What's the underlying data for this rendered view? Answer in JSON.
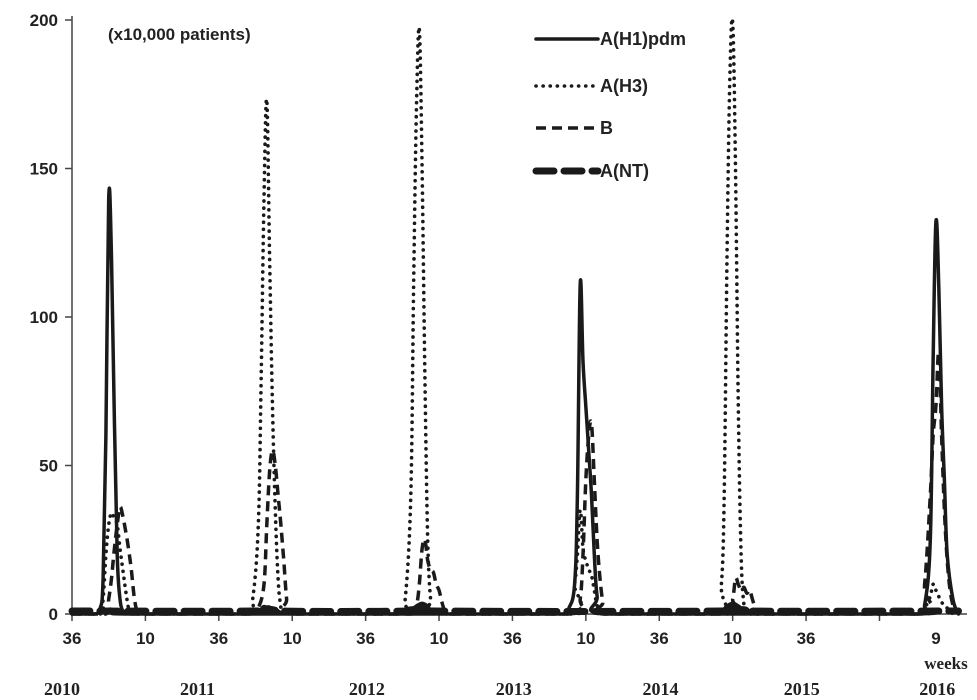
{
  "chart_data": {
    "type": "line",
    "unit_note": "(x10,000 patients)",
    "xlabel": "weeks",
    "ylim": [
      0,
      200
    ],
    "y_ticks": [
      0,
      50,
      100,
      150,
      200
    ],
    "x_week_ticks": [
      "36",
      "10",
      "36",
      "10",
      "36",
      "10",
      "36",
      "10",
      "36",
      "10",
      "36",
      "9"
    ],
    "year_labels": [
      "2010",
      "2011",
      "2012",
      "2013",
      "2014",
      "2015",
      "2016"
    ],
    "legend_position": "top-right",
    "grid": false,
    "series": [
      {
        "name": "A(H1)pdm",
        "style": "solid",
        "points": [
          [
            36,
            0
          ],
          [
            44,
            0
          ],
          [
            46,
            2
          ],
          [
            47,
            12
          ],
          [
            48,
            60
          ],
          [
            49,
            140
          ],
          [
            50,
            120
          ],
          [
            51,
            65
          ],
          [
            52,
            20
          ],
          [
            53,
            5
          ],
          [
            54,
            1
          ],
          [
            55,
            0
          ],
          [
            112,
            0
          ],
          [
            114,
            1
          ],
          [
            116,
            0
          ],
          [
            160,
            0
          ],
          [
            210,
            0
          ],
          [
            212,
            2
          ],
          [
            214,
            10
          ],
          [
            215,
            40
          ],
          [
            216,
            111
          ],
          [
            217,
            85
          ],
          [
            218,
            70
          ],
          [
            219,
            55
          ],
          [
            220,
            40
          ],
          [
            221,
            20
          ],
          [
            222,
            6
          ],
          [
            224,
            0
          ],
          [
            270,
            0
          ],
          [
            336,
            0
          ],
          [
            338,
            3
          ],
          [
            340,
            25
          ],
          [
            341,
            85
          ],
          [
            342,
            132
          ],
          [
            343,
            110
          ],
          [
            344,
            70
          ],
          [
            345,
            45
          ],
          [
            346,
            20
          ],
          [
            348,
            5
          ],
          [
            350,
            0
          ]
        ]
      },
      {
        "name": "A(H3)",
        "style": "dotted",
        "points": [
          [
            36,
            0
          ],
          [
            46,
            0
          ],
          [
            47,
            5
          ],
          [
            48,
            20
          ],
          [
            49,
            30
          ],
          [
            50,
            34
          ],
          [
            51,
            32
          ],
          [
            52,
            30
          ],
          [
            53,
            22
          ],
          [
            54,
            15
          ],
          [
            55,
            8
          ],
          [
            56,
            2
          ],
          [
            57,
            0
          ],
          [
            98,
            0
          ],
          [
            100,
            5
          ],
          [
            102,
            30
          ],
          [
            103,
            80
          ],
          [
            104,
            140
          ],
          [
            105,
            173
          ],
          [
            106,
            120
          ],
          [
            107,
            70
          ],
          [
            108,
            35
          ],
          [
            109,
            12
          ],
          [
            110,
            3
          ],
          [
            112,
            0
          ],
          [
            152,
            0
          ],
          [
            154,
            5
          ],
          [
            156,
            40
          ],
          [
            157,
            110
          ],
          [
            158,
            170
          ],
          [
            159,
            197
          ],
          [
            160,
            150
          ],
          [
            161,
            80
          ],
          [
            162,
            25
          ],
          [
            163,
            5
          ],
          [
            164,
            0
          ],
          [
            212,
            0
          ],
          [
            214,
            10
          ],
          [
            215,
            20
          ],
          [
            216,
            35
          ],
          [
            217,
            22
          ],
          [
            218,
            18
          ],
          [
            219,
            15
          ],
          [
            220,
            13
          ],
          [
            221,
            8
          ],
          [
            222,
            3
          ],
          [
            224,
            0
          ],
          [
            264,
            0
          ],
          [
            266,
            10
          ],
          [
            267,
            40
          ],
          [
            268,
            120
          ],
          [
            269,
            180
          ],
          [
            270,
            199
          ],
          [
            271,
            150
          ],
          [
            272,
            70
          ],
          [
            273,
            20
          ],
          [
            274,
            3
          ],
          [
            275,
            0
          ],
          [
            336,
            0
          ],
          [
            338,
            2
          ],
          [
            340,
            6
          ],
          [
            341,
            10
          ],
          [
            342,
            8
          ],
          [
            344,
            4
          ],
          [
            346,
            2
          ],
          [
            348,
            0
          ]
        ]
      },
      {
        "name": "B",
        "style": "dashed",
        "points": [
          [
            36,
            0
          ],
          [
            48,
            0
          ],
          [
            49,
            5
          ],
          [
            50,
            12
          ],
          [
            51,
            22
          ],
          [
            52,
            30
          ],
          [
            53,
            36
          ],
          [
            54,
            33
          ],
          [
            55,
            28
          ],
          [
            56,
            22
          ],
          [
            57,
            15
          ],
          [
            58,
            6
          ],
          [
            59,
            1
          ],
          [
            60,
            0
          ],
          [
            100,
            0
          ],
          [
            102,
            2
          ],
          [
            104,
            10
          ],
          [
            105,
            30
          ],
          [
            106,
            48
          ],
          [
            107,
            55
          ],
          [
            108,
            50
          ],
          [
            109,
            40
          ],
          [
            110,
            30
          ],
          [
            111,
            18
          ],
          [
            112,
            5
          ],
          [
            113,
            0
          ],
          [
            156,
            0
          ],
          [
            158,
            3
          ],
          [
            159,
            10
          ],
          [
            160,
            22
          ],
          [
            161,
            25
          ],
          [
            162,
            18
          ],
          [
            163,
            15
          ],
          [
            164,
            14
          ],
          [
            165,
            10
          ],
          [
            166,
            8
          ],
          [
            167,
            4
          ],
          [
            168,
            1
          ],
          [
            169,
            0
          ],
          [
            214,
            0
          ],
          [
            216,
            5
          ],
          [
            217,
            20
          ],
          [
            218,
            45
          ],
          [
            219,
            60
          ],
          [
            220,
            64
          ],
          [
            221,
            45
          ],
          [
            222,
            25
          ],
          [
            223,
            12
          ],
          [
            224,
            4
          ],
          [
            225,
            0
          ],
          [
            268,
            0
          ],
          [
            270,
            5
          ],
          [
            271,
            12
          ],
          [
            272,
            10
          ],
          [
            273,
            8
          ],
          [
            274,
            9
          ],
          [
            275,
            7
          ],
          [
            276,
            8
          ],
          [
            277,
            5
          ],
          [
            278,
            2
          ],
          [
            279,
            0
          ],
          [
            336,
            0
          ],
          [
            338,
            10
          ],
          [
            340,
            40
          ],
          [
            341,
            60
          ],
          [
            342,
            70
          ],
          [
            343,
            88
          ],
          [
            344,
            60
          ],
          [
            345,
            35
          ],
          [
            346,
            18
          ],
          [
            347,
            8
          ],
          [
            348,
            3
          ],
          [
            349,
            0
          ]
        ]
      },
      {
        "name": "A(NT)",
        "style": "heavy-dashed",
        "points": [
          [
            36,
            1
          ],
          [
            102,
            1
          ],
          [
            104,
            2
          ],
          [
            105,
            3
          ],
          [
            106,
            2
          ],
          [
            108,
            1
          ],
          [
            156,
            1
          ],
          [
            158,
            2
          ],
          [
            160,
            3
          ],
          [
            162,
            2
          ],
          [
            164,
            1
          ],
          [
            266,
            1
          ],
          [
            268,
            2
          ],
          [
            270,
            3
          ],
          [
            272,
            2
          ],
          [
            274,
            1
          ],
          [
            350,
            1
          ]
        ]
      }
    ]
  }
}
